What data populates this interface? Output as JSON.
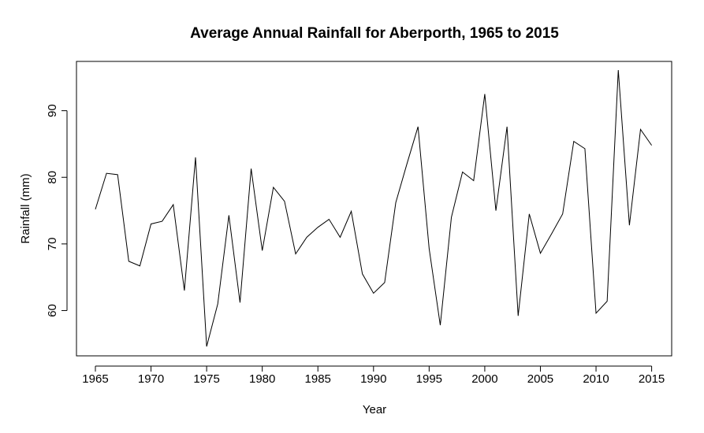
{
  "chart_data": {
    "type": "line",
    "title": "Average Annual Rainfall for Aberporth, 1965 to 2015",
    "xlabel": "Year",
    "ylabel": "Rainfall (mm)",
    "xlim": [
      1963.3,
      1991.8
    ],
    "ylim": [
      53.2,
      97.4
    ],
    "x_ticks": [
      "1965",
      "1970",
      "1975",
      "1980",
      "1985",
      "1990",
      "1995",
      "2000",
      "2005",
      "2010",
      "2015"
    ],
    "y_ticks": [
      "60",
      "70",
      "80",
      "90"
    ],
    "grid": false,
    "series": [
      {
        "color": "#000000",
        "points": [
          [
            "1965",
            75.2
          ],
          [
            "1966",
            80.6
          ],
          [
            "1967",
            80.4
          ],
          [
            "1968",
            67.4
          ],
          [
            "1969",
            66.7
          ],
          [
            "1970",
            73.0
          ],
          [
            "1971",
            73.4
          ],
          [
            "1972",
            75.9
          ],
          [
            "1973",
            63.0
          ],
          [
            "1974",
            83.0
          ],
          [
            "1975",
            54.6
          ],
          [
            "1976",
            61.0
          ],
          [
            "1977",
            74.3
          ],
          [
            "1978",
            61.2
          ],
          [
            "1979",
            81.3
          ],
          [
            "1980",
            69.0
          ],
          [
            "1981",
            78.5
          ],
          [
            "1982",
            76.4
          ],
          [
            "1983",
            68.5
          ],
          [
            "1984",
            71.0
          ],
          [
            "1985",
            72.5
          ],
          [
            "1986",
            73.7
          ],
          [
            "1987",
            71.0
          ],
          [
            "1988",
            74.9
          ],
          [
            "1989",
            65.5
          ],
          [
            "1990",
            62.6
          ],
          [
            "1991",
            64.2
          ],
          [
            "1992",
            76.2
          ],
          [
            "1993",
            82.0
          ],
          [
            "1994",
            87.6
          ],
          [
            "1995",
            69.3
          ],
          [
            "1996",
            57.8
          ],
          [
            "1997",
            74.0
          ],
          [
            "1998",
            80.8
          ],
          [
            "1999",
            79.5
          ],
          [
            "2000",
            92.5
          ],
          [
            "2001",
            75.0
          ],
          [
            "2002",
            87.6
          ],
          [
            "2003",
            59.2
          ],
          [
            "2004",
            74.5
          ],
          [
            "2005",
            68.6
          ],
          [
            "2006",
            71.5
          ],
          [
            "2007",
            74.5
          ],
          [
            "2008",
            85.4
          ],
          [
            "2009",
            84.3
          ],
          [
            "2010",
            59.6
          ],
          [
            "2011",
            61.4
          ],
          [
            "2012",
            96.1
          ],
          [
            "2013",
            72.8
          ],
          [
            "2014",
            87.2
          ],
          [
            "2015",
            84.8
          ]
        ]
      }
    ]
  }
}
